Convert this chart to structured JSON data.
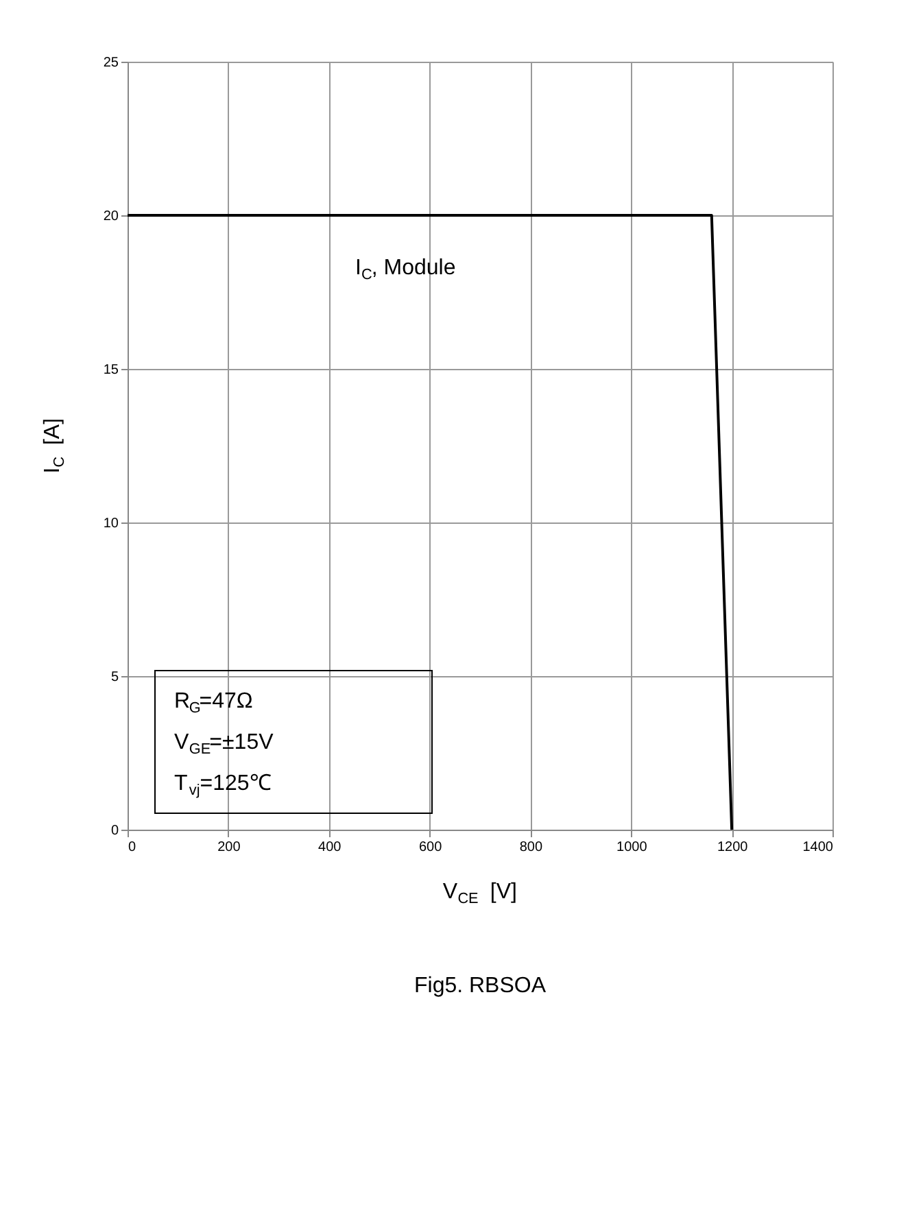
{
  "chart_data": {
    "type": "line",
    "title": "Fig5. RBSOA",
    "xlabel": "V$_{CE}$  [V]",
    "ylabel": "I$_{C}$  [A]",
    "x": [
      0,
      1160,
      1200
    ],
    "series": [
      {
        "color": "#000000",
        "values": [
          20,
          20,
          0
        ]
      }
    ],
    "xlim": [
      0,
      1400
    ],
    "xticks": [
      0,
      200,
      400,
      600,
      800,
      1000,
      1200,
      1400
    ],
    "ylim": [
      0,
      25
    ],
    "yticks": [
      0,
      5,
      10,
      15,
      20,
      25
    ],
    "grid": true,
    "marker": "none",
    "line_style": "solid",
    "annotations": [
      "I$_{C}$, Module",
      "R$_{G}$=47Ω",
      "V$_{GE}$=±15V",
      "T$_{vj}$=125℃"
    ]
  }
}
